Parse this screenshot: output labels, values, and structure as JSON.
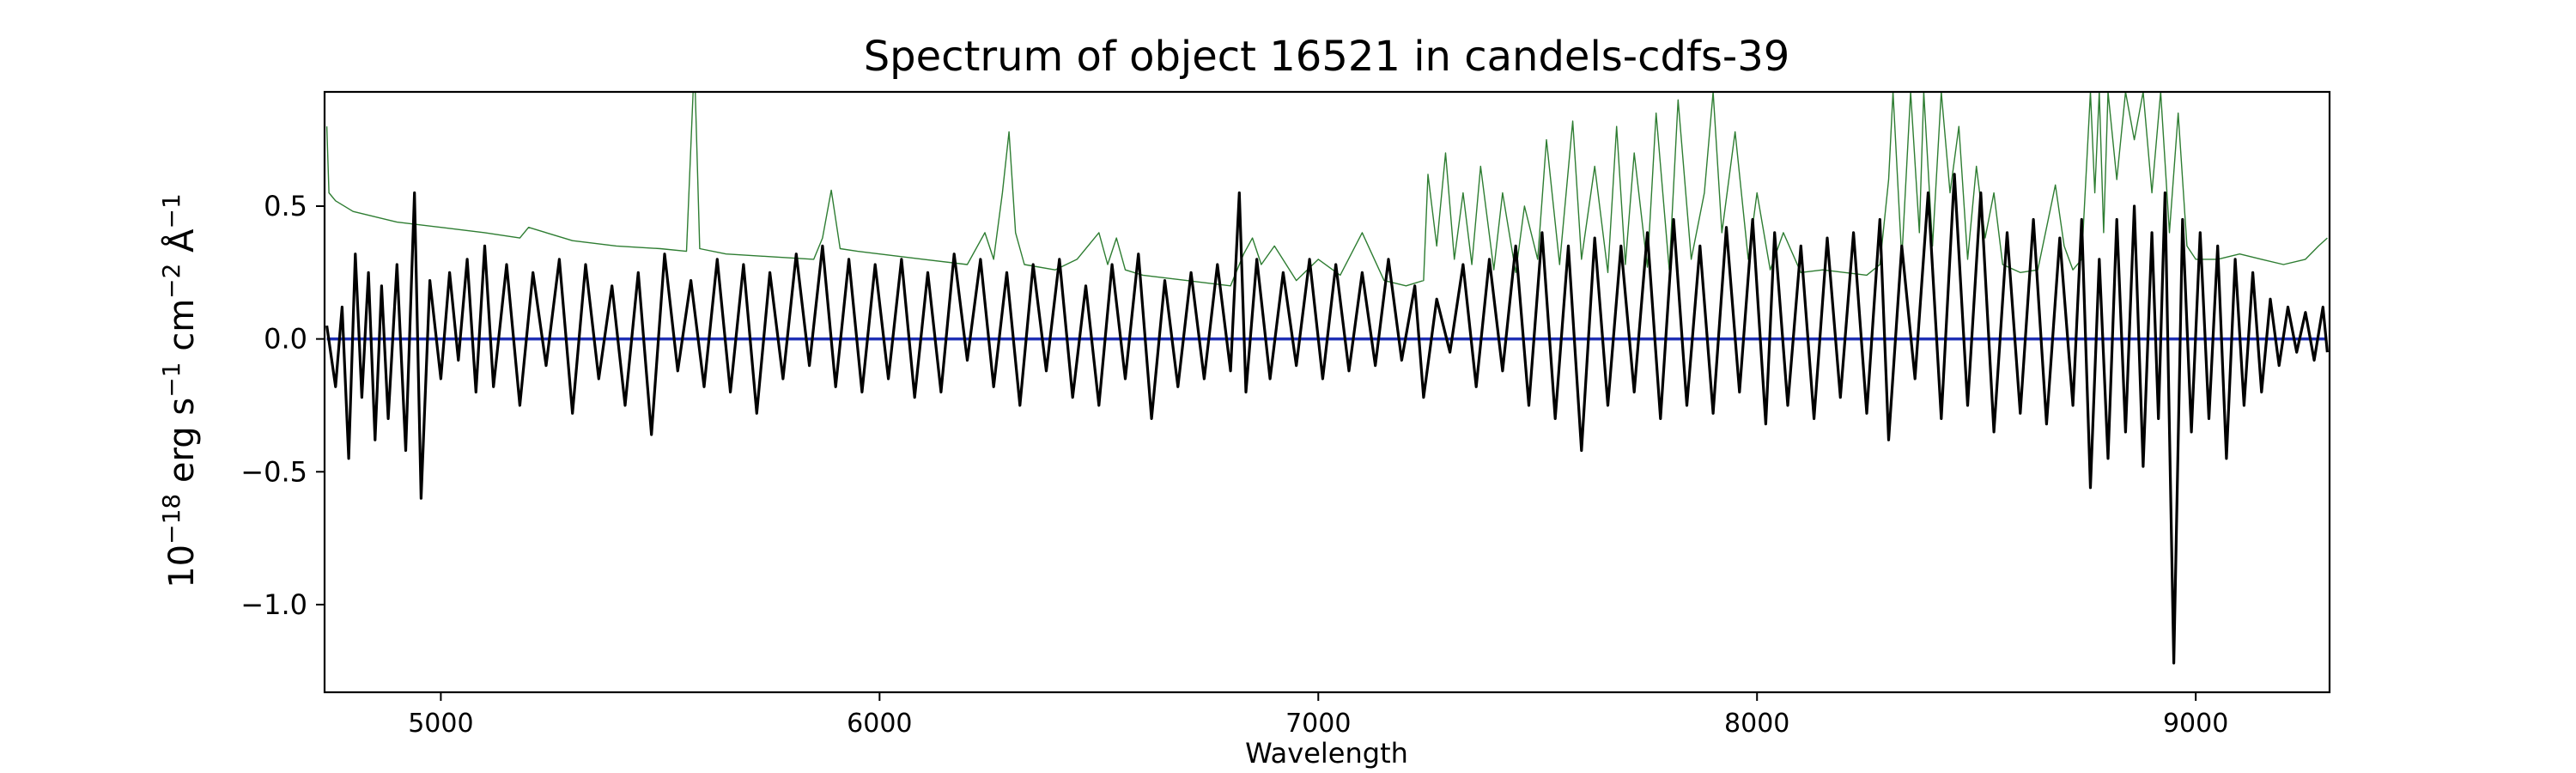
{
  "chart_data": {
    "type": "line",
    "title": "Spectrum of object 16521 in candels-cdfs-39",
    "xlabel": "Wavelength",
    "ylabel": {
      "base": "10",
      "exp": "−18",
      "unit": " erg s",
      "exp2": "−1",
      "unit2": " cm",
      "exp3": "−2",
      "unit3": " Å",
      "exp4": "−1"
    },
    "xlim": [
      4735,
      9305
    ],
    "ylim": [
      -1.33,
      0.93
    ],
    "x_ticks": [
      5000,
      6000,
      7000,
      8000,
      9000
    ],
    "y_ticks": [
      0.5,
      0.0,
      -0.5,
      -1.0
    ],
    "x_tick_labels": [
      "5000",
      "6000",
      "7000",
      "8000",
      "9000"
    ],
    "y_tick_labels": [
      "0.5",
      "0.0",
      "−0.5",
      "−1.0"
    ],
    "grid": false,
    "series": [
      {
        "role": "flux",
        "color": "#000000",
        "x": [
          4740,
          4760,
          4775,
          4790,
          4805,
          4820,
          4835,
          4850,
          4865,
          4880,
          4900,
          4920,
          4940,
          4955,
          4975,
          5000,
          5020,
          5040,
          5060,
          5080,
          5100,
          5120,
          5150,
          5180,
          5210,
          5240,
          5270,
          5300,
          5330,
          5360,
          5390,
          5420,
          5450,
          5480,
          5510,
          5540,
          5570,
          5600,
          5630,
          5660,
          5690,
          5720,
          5750,
          5780,
          5810,
          5840,
          5870,
          5900,
          5930,
          5960,
          5990,
          6020,
          6050,
          6080,
          6110,
          6140,
          6170,
          6200,
          6230,
          6260,
          6290,
          6320,
          6350,
          6380,
          6410,
          6440,
          6470,
          6500,
          6530,
          6560,
          6590,
          6620,
          6650,
          6680,
          6710,
          6740,
          6770,
          6800,
          6820,
          6835,
          6860,
          6890,
          6920,
          6950,
          6980,
          7010,
          7040,
          7070,
          7100,
          7130,
          7160,
          7190,
          7220,
          7240,
          7270,
          7300,
          7330,
          7360,
          7390,
          7420,
          7450,
          7480,
          7510,
          7540,
          7570,
          7600,
          7630,
          7660,
          7690,
          7720,
          7750,
          7780,
          7810,
          7840,
          7870,
          7900,
          7930,
          7960,
          7990,
          8020,
          8040,
          8070,
          8100,
          8130,
          8160,
          8190,
          8220,
          8250,
          8280,
          8300,
          8330,
          8360,
          8390,
          8420,
          8450,
          8480,
          8510,
          8540,
          8570,
          8600,
          8630,
          8660,
          8690,
          8720,
          8740,
          8760,
          8780,
          8800,
          8820,
          8840,
          8860,
          8880,
          8900,
          8915,
          8930,
          8950,
          8970,
          8990,
          9010,
          9030,
          9050,
          9070,
          9090,
          9110,
          9130,
          9150,
          9170,
          9190,
          9210,
          9230,
          9250,
          9270,
          9290,
          9300
        ],
        "y": [
          0.05,
          -0.18,
          0.12,
          -0.45,
          0.32,
          -0.22,
          0.25,
          -0.38,
          0.2,
          -0.3,
          0.28,
          -0.42,
          0.55,
          -0.6,
          0.22,
          -0.15,
          0.25,
          -0.08,
          0.3,
          -0.2,
          0.35,
          -0.18,
          0.28,
          -0.25,
          0.25,
          -0.1,
          0.3,
          -0.28,
          0.28,
          -0.15,
          0.2,
          -0.25,
          0.25,
          -0.36,
          0.32,
          -0.12,
          0.22,
          -0.18,
          0.3,
          -0.2,
          0.28,
          -0.28,
          0.25,
          -0.15,
          0.32,
          -0.1,
          0.35,
          -0.18,
          0.3,
          -0.2,
          0.28,
          -0.15,
          0.3,
          -0.22,
          0.25,
          -0.2,
          0.32,
          -0.08,
          0.3,
          -0.18,
          0.25,
          -0.25,
          0.28,
          -0.12,
          0.3,
          -0.22,
          0.2,
          -0.25,
          0.28,
          -0.15,
          0.32,
          -0.3,
          0.22,
          -0.18,
          0.25,
          -0.15,
          0.28,
          -0.12,
          0.55,
          -0.2,
          0.3,
          -0.15,
          0.25,
          -0.1,
          0.3,
          -0.15,
          0.28,
          -0.12,
          0.25,
          -0.1,
          0.3,
          -0.08,
          0.2,
          -0.22,
          0.15,
          -0.05,
          0.28,
          -0.18,
          0.3,
          -0.12,
          0.35,
          -0.25,
          0.4,
          -0.3,
          0.35,
          -0.42,
          0.38,
          -0.25,
          0.35,
          -0.2,
          0.4,
          -0.3,
          0.45,
          -0.25,
          0.35,
          -0.28,
          0.42,
          -0.2,
          0.45,
          -0.32,
          0.4,
          -0.25,
          0.35,
          -0.3,
          0.38,
          -0.22,
          0.4,
          -0.28,
          0.45,
          -0.38,
          0.35,
          -0.15,
          0.55,
          -0.3,
          0.62,
          -0.25,
          0.55,
          -0.35,
          0.4,
          -0.28,
          0.45,
          -0.32,
          0.38,
          -0.25,
          0.45,
          -0.56,
          0.3,
          -0.45,
          0.45,
          -0.35,
          0.5,
          -0.48,
          0.4,
          -0.3,
          0.55,
          -1.22,
          0.45,
          -0.35,
          0.4,
          -0.3,
          0.35,
          -0.45,
          0.3,
          -0.25,
          0.25,
          -0.2,
          0.15,
          -0.1,
          0.12,
          -0.05,
          0.1,
          -0.08,
          0.12,
          -0.05
        ]
      },
      {
        "role": "noise",
        "color": "#2e7d32",
        "x": [
          4740,
          4745,
          4760,
          4800,
          4900,
          5000,
          5100,
          5180,
          5200,
          5300,
          5400,
          5500,
          5560,
          5575,
          5580,
          5590,
          5650,
          5750,
          5850,
          5870,
          5890,
          5910,
          5950,
          6000,
          6100,
          6200,
          6240,
          6260,
          6280,
          6295,
          6310,
          6330,
          6400,
          6450,
          6500,
          6520,
          6540,
          6560,
          6600,
          6700,
          6800,
          6830,
          6850,
          6870,
          6900,
          6950,
          7000,
          7050,
          7100,
          7150,
          7200,
          7240,
          7250,
          7270,
          7290,
          7310,
          7330,
          7350,
          7370,
          7400,
          7420,
          7450,
          7470,
          7500,
          7520,
          7550,
          7580,
          7600,
          7630,
          7660,
          7680,
          7700,
          7720,
          7750,
          7770,
          7800,
          7820,
          7850,
          7880,
          7900,
          7920,
          7950,
          7980,
          8000,
          8030,
          8060,
          8100,
          8150,
          8200,
          8250,
          8280,
          8300,
          8310,
          8330,
          8350,
          8370,
          8380,
          8400,
          8420,
          8440,
          8460,
          8480,
          8500,
          8520,
          8540,
          8560,
          8600,
          8640,
          8680,
          8700,
          8720,
          8740,
          8760,
          8770,
          8780,
          8790,
          8800,
          8820,
          8840,
          8860,
          8880,
          8900,
          8920,
          8940,
          8960,
          8980,
          9000,
          9050,
          9100,
          9150,
          9200,
          9250,
          9280,
          9300
        ],
        "y": [
          0.8,
          0.55,
          0.52,
          0.48,
          0.44,
          0.42,
          0.4,
          0.38,
          0.42,
          0.37,
          0.35,
          0.34,
          0.33,
          0.93,
          0.93,
          0.34,
          0.32,
          0.31,
          0.3,
          0.38,
          0.56,
          0.34,
          0.33,
          0.32,
          0.3,
          0.28,
          0.4,
          0.3,
          0.55,
          0.78,
          0.4,
          0.28,
          0.26,
          0.3,
          0.4,
          0.28,
          0.38,
          0.26,
          0.24,
          0.22,
          0.2,
          0.32,
          0.38,
          0.28,
          0.35,
          0.22,
          0.3,
          0.24,
          0.4,
          0.22,
          0.2,
          0.22,
          0.62,
          0.35,
          0.7,
          0.3,
          0.55,
          0.28,
          0.65,
          0.26,
          0.55,
          0.25,
          0.5,
          0.3,
          0.75,
          0.28,
          0.82,
          0.3,
          0.65,
          0.25,
          0.8,
          0.28,
          0.7,
          0.27,
          0.85,
          0.26,
          0.9,
          0.3,
          0.55,
          0.93,
          0.4,
          0.78,
          0.3,
          0.55,
          0.26,
          0.4,
          0.25,
          0.26,
          0.25,
          0.24,
          0.28,
          0.6,
          0.93,
          0.3,
          0.93,
          0.4,
          0.93,
          0.35,
          0.93,
          0.55,
          0.8,
          0.3,
          0.65,
          0.38,
          0.55,
          0.28,
          0.25,
          0.26,
          0.58,
          0.35,
          0.26,
          0.3,
          0.93,
          0.55,
          0.93,
          0.4,
          0.93,
          0.6,
          0.93,
          0.75,
          0.93,
          0.55,
          0.93,
          0.4,
          0.85,
          0.35,
          0.3,
          0.3,
          0.32,
          0.3,
          0.28,
          0.3,
          0.35,
          0.38
        ]
      },
      {
        "role": "zero",
        "color": "#1f2fb4",
        "x": [
          4740,
          9300
        ],
        "y": [
          0.0,
          0.0
        ]
      }
    ]
  }
}
